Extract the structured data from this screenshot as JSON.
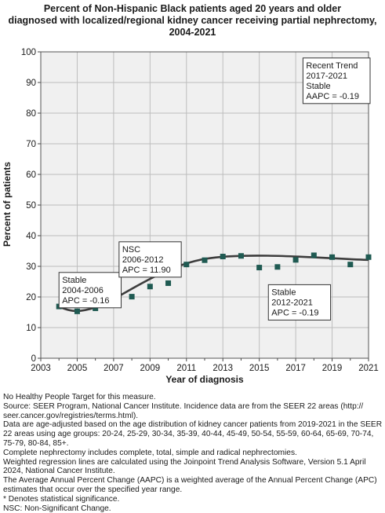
{
  "chart_data": {
    "type": "line",
    "title": "Percent of Non-Hispanic Black patients aged 20 years and older\ndiagnosed with localized/regional kidney cancer receiving partial nephrectomy,\n2004-2021",
    "xlabel": "Year of diagnosis",
    "ylabel": "Percent of patients",
    "xlim": [
      2003,
      2021
    ],
    "ylim": [
      0,
      100
    ],
    "x_ticks": [
      "2003",
      "2005",
      "2007",
      "2009",
      "2011",
      "2013",
      "2015",
      "2017",
      "2019",
      "2021"
    ],
    "y_ticks": [
      "0",
      "10",
      "20",
      "30",
      "40",
      "50",
      "60",
      "70",
      "80",
      "90",
      "100"
    ],
    "grid": true,
    "observed": {
      "x": [
        2004,
        2005,
        2006,
        2007,
        2008,
        2009,
        2010,
        2011,
        2012,
        2013,
        2014,
        2015,
        2016,
        2017,
        2018,
        2019,
        2020,
        2021
      ],
      "y": [
        16.9,
        15.3,
        16.3,
        19.8,
        20.1,
        23.4,
        24.5,
        30.6,
        32.0,
        33.2,
        33.4,
        29.6,
        29.8,
        32.1,
        33.6,
        33.0,
        30.6,
        33.0
      ]
    },
    "trend": {
      "x": [
        2004,
        2006,
        2012,
        2021
      ],
      "y": [
        16.6,
        16.6,
        32.4,
        32.1
      ]
    },
    "annotations": [
      {
        "text": [
          "Stable",
          "2004-2006",
          "APC = -0.16"
        ],
        "x": 2004,
        "y": 28
      },
      {
        "text": [
          "NSC",
          "2006-2012",
          "APC = 11.90"
        ],
        "x": 2007.3,
        "y": 38
      },
      {
        "text": [
          "Stable",
          "2012-2021",
          "APC = -0.19"
        ],
        "x": 2015.5,
        "y": 24
      },
      {
        "text": [
          "Recent Trend",
          "2017-2021",
          "Stable",
          "AAPC = -0.19"
        ],
        "x": 2017.4,
        "y": 98
      }
    ],
    "colors": {
      "points": "#1f5a52",
      "line": "#3d3d3d",
      "plot_bg": "#f0f0f0",
      "grid": "#bdbdbd"
    }
  },
  "footnotes": [
    "No Healthy People Target for this measure.",
    "Source: SEER Program, National Cancer Institute. Incidence data are from the SEER 22 areas (http://",
    "seer.cancer.gov/registries/terms.html).",
    "Data are age-adjusted based on the age distribution of kidney cancer patients from 2019-2021 in the SEER",
    "22 areas using age groups: 20-24, 25-29, 30-34, 35-39, 40-44, 45-49, 50-54, 55-59, 60-64, 65-69, 70-74,",
    "75-79, 80-84, 85+.",
    "Complete nephrectomy includes complete, total, simple and radical nephrectomies.",
    "Weighted regression lines are calculated using the Joinpoint Trend Analysis Software, Version 5.1 April",
    "2024, National Cancer Institute.",
    "The Average Annual Percent Change (AAPC) is a weighted average of the Annual Percent Change (APC)",
    "estimates that occur over the specified year range.",
    "* Denotes statistical significance.",
    "NSC: Non-Significant Change."
  ]
}
